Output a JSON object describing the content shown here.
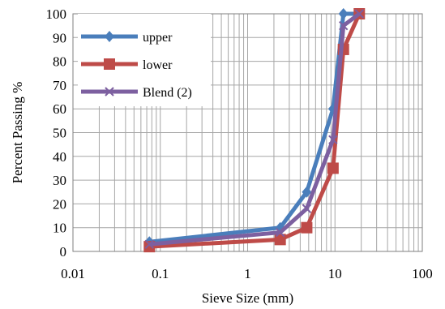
{
  "chart_data": {
    "type": "line",
    "xlabel": "Sieve Size  (mm)",
    "ylabel": "Percent Passing %",
    "xscale": "log",
    "xlim": [
      0.01,
      100
    ],
    "ylim": [
      0,
      100
    ],
    "x_ticks": [
      "0.01",
      "0.1",
      "1",
      "10",
      "100"
    ],
    "y_ticks": [
      "0",
      "10",
      "20",
      "30",
      "40",
      "50",
      "60",
      "70",
      "80",
      "90",
      "100"
    ],
    "grid": true,
    "legend_position": "top-left",
    "series": [
      {
        "name": "upper",
        "color": "#4a7ebb",
        "marker": "diamond",
        "x": [
          0.075,
          2.36,
          4.75,
          9.5,
          12.5,
          19
        ],
        "y": [
          4,
          10,
          25,
          60,
          100,
          100
        ]
      },
      {
        "name": "lower",
        "color": "#be4b48",
        "marker": "square",
        "x": [
          0.075,
          2.36,
          4.75,
          9.5,
          12.5,
          19
        ],
        "y": [
          2,
          5,
          10,
          35,
          85,
          100
        ]
      },
      {
        "name": "Blend (2)",
        "color": "#7d60a0",
        "marker": "x",
        "x": [
          0.075,
          2.36,
          4.75,
          9.5,
          12.5,
          19
        ],
        "y": [
          3,
          8,
          18,
          47,
          95,
          100
        ]
      }
    ]
  }
}
